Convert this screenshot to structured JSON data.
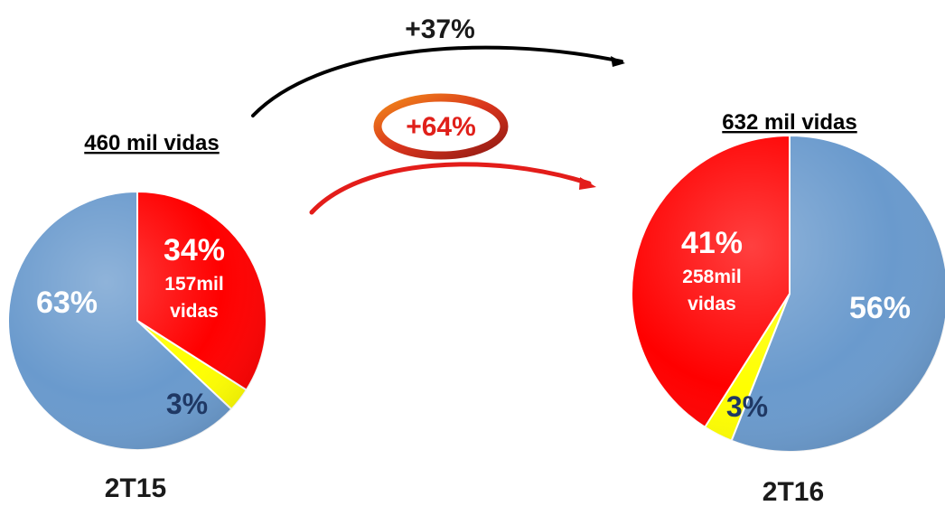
{
  "chart_data": [
    {
      "type": "pie",
      "title": "460 mil vidas",
      "period": "2T15",
      "slices": [
        {
          "value": 34,
          "color": "#ff0000",
          "pct_label": "34%",
          "detail": [
            "157mil",
            "vidas"
          ]
        },
        {
          "value": 3,
          "color": "#ffff00",
          "pct_label": "3%",
          "detail": []
        },
        {
          "value": 63,
          "color": "#6a9acd",
          "pct_label": "63%",
          "detail": []
        }
      ]
    },
    {
      "type": "pie",
      "title": "632 mil vidas",
      "period": "2T16",
      "slices": [
        {
          "value": 56,
          "color": "#6a9acd",
          "pct_label": "56%",
          "detail": []
        },
        {
          "value": 3,
          "color": "#ffff00",
          "pct_label": "3%",
          "detail": []
        },
        {
          "value": 41,
          "color": "#ff0000",
          "pct_label": "41%",
          "detail": [
            "258mil",
            "vidas"
          ]
        }
      ]
    }
  ],
  "growth": {
    "total_label": "+37%",
    "red_label": "+64%"
  },
  "colors": {
    "blue_text": "#1f3864",
    "red_text": "#e0201a",
    "white_text": "#ffffff",
    "black_arrow": "#000000",
    "red_arrow": "#e31d1a",
    "ring": "#c0391b"
  }
}
